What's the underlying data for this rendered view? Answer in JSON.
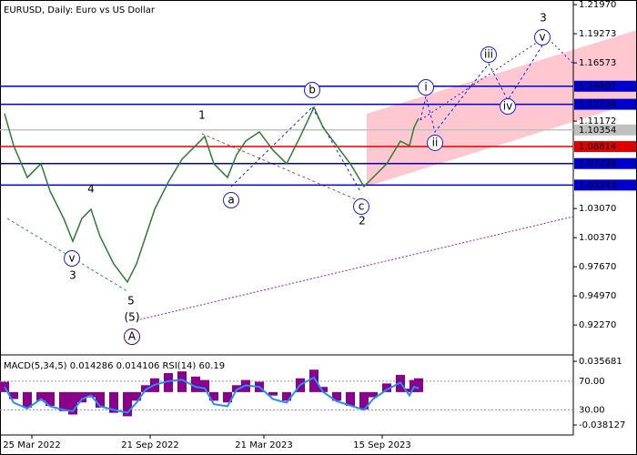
{
  "chart_data": {
    "type": "line",
    "title": "EURUSD, Daily:  Euro vs US Dollar",
    "xlim": [
      0,
      126
    ],
    "xticks": [
      {
        "value": 7,
        "label": "25 Mar 2022"
      },
      {
        "value": 33,
        "label": "21 Sep 2022"
      },
      {
        "value": 58,
        "label": "21 Mar 2023"
      },
      {
        "value": 84,
        "label": "15 Sep 2023"
      }
    ],
    "ylim": [
      0.895,
      1.224
    ],
    "yticks": [
      {
        "value": 1.2197,
        "label": "1.21970"
      },
      {
        "value": 1.19273,
        "label": "1.19273"
      },
      {
        "value": 1.16573,
        "label": "1.16573"
      },
      {
        "value": 1.11172,
        "label": "1.11172"
      },
      {
        "value": 1.0307,
        "label": "1.03070"
      },
      {
        "value": 1.0037,
        "label": "1.00370"
      },
      {
        "value": 0.9767,
        "label": "0.97670"
      },
      {
        "value": 0.9497,
        "label": "0.94970"
      },
      {
        "value": 0.9227,
        "label": "0.92270"
      }
    ],
    "series": [
      {
        "color": "#2e7d32",
        "x": [
          1,
          3,
          6,
          9,
          11,
          14,
          16,
          18,
          20,
          22,
          25,
          28,
          30,
          32,
          34,
          37,
          40,
          43,
          45,
          47,
          50,
          52,
          54,
          57,
          60,
          63,
          66,
          69,
          71,
          74,
          77,
          80,
          82,
          85,
          88,
          90,
          91,
          92
        ],
        "values": [
          1.1186,
          1.089,
          1.0595,
          1.0722,
          1.0468,
          1.0215,
          1.0004,
          1.0215,
          1.03,
          1.0047,
          0.9794,
          0.9625,
          0.9794,
          1.0047,
          1.03,
          1.0553,
          1.0764,
          1.089,
          1.0975,
          1.0722,
          1.0595,
          1.0806,
          1.0932,
          1.1017,
          1.0848,
          1.0722,
          1.0975,
          1.1245,
          1.1059,
          1.089,
          1.0722,
          1.0511,
          1.0595,
          1.0722,
          1.0932,
          1.089,
          1.1059,
          1.1143
        ]
      }
    ],
    "levels": [
      {
        "value": 1.14407,
        "color": "#0000cd"
      },
      {
        "value": 1.12734,
        "color": "#0000cd"
      },
      {
        "value": 1.10354,
        "color": "#c0c0c0"
      },
      {
        "value": 1.08814,
        "color": "#e00000"
      },
      {
        "value": 1.07238,
        "color": "#0000cd"
      },
      {
        "value": 1.05243,
        "color": "#0000cd"
      }
    ],
    "annotations": [
      {
        "text": "1",
        "x": 44.4,
        "y": 1.1169,
        "color": "#a0522d",
        "circled": false
      },
      {
        "text": "2",
        "x": 79.6,
        "y": 1.019,
        "color": "#a0522d",
        "circled": false
      },
      {
        "text": "3",
        "x": 119.4,
        "y": 1.2071,
        "color": "#a0522d",
        "circled": false
      },
      {
        "text": "4",
        "x": 20,
        "y": 1.0485,
        "color": "#a0522d",
        "circled": false
      },
      {
        "text": "5",
        "x": 28.8,
        "y": 0.9448,
        "color": "#a0522d",
        "circled": false
      },
      {
        "text": "3",
        "x": 16,
        "y": 0.9684,
        "color": "#a0522d",
        "circled": false
      },
      {
        "text": "(5)",
        "x": 29,
        "y": 0.9296,
        "color": "#2e8b57",
        "circled": false
      },
      {
        "text": "A",
        "x": 29,
        "y": 0.9119,
        "color": "#4b0082",
        "circled": true
      },
      {
        "text": "a",
        "x": 50.8,
        "y": 1.0384,
        "color": "#1a1aff",
        "circled": true
      },
      {
        "text": "b",
        "x": 68.6,
        "y": 1.1405,
        "color": "#1a1aff",
        "circled": true
      },
      {
        "text": "c",
        "x": 79.4,
        "y": 1.0325,
        "color": "#1a1aff",
        "circled": true
      },
      {
        "text": "v",
        "x": 15.8,
        "y": 0.9844,
        "color": "#1a1aff",
        "circled": true
      },
      {
        "text": "i",
        "x": 93.6,
        "y": 1.143,
        "color": "#1a1aff",
        "circled": true
      },
      {
        "text": "ii",
        "x": 95.6,
        "y": 1.0916,
        "color": "#1a1aff",
        "circled": true
      },
      {
        "text": "iii",
        "x": 107.4,
        "y": 1.1734,
        "color": "#1a1aff",
        "circled": true
      },
      {
        "text": "iv",
        "x": 111.6,
        "y": 1.1253,
        "color": "#1a1aff",
        "circled": true
      },
      {
        "text": "v",
        "x": 119.2,
        "y": 1.1894,
        "color": "#1a1aff",
        "circled": true
      }
    ],
    "indicator": {
      "type": "bar",
      "title": "MACD(5,34,5) 0.014286 0.014106 RSI(14) 60.19",
      "ylim": [
        -0.0497,
        0.041
      ],
      "yticks": [
        0.035681,
        -0.038127
      ],
      "y2lim": [
        -5,
        104
      ],
      "y2ticks": [
        {
          "value": 70,
          "label": "70.00"
        },
        {
          "value": 30,
          "label": "30.00"
        }
      ],
      "series": [
        {
          "color": "#8b008b",
          "values": [
            0.012,
            -0.008,
            -0.018,
            -0.01,
            -0.016,
            -0.022,
            -0.026,
            -0.012,
            -0.006,
            -0.018,
            -0.024,
            -0.028,
            -0.01,
            0.008,
            0.016,
            0.022,
            0.024,
            0.018,
            0.014,
            -0.01,
            -0.012,
            0.008,
            0.014,
            0.012,
            -0.004,
            -0.01,
            0.016,
            0.026,
            0.006,
            -0.01,
            -0.016,
            -0.02,
            -0.006,
            0.01,
            0.02,
            0.004,
            0.014,
            0.016
          ]
        },
        {
          "color": "#1e90ff",
          "axis": "y2",
          "values": [
            62,
            40,
            32,
            45,
            35,
            30,
            28,
            45,
            50,
            35,
            30,
            26,
            40,
            58,
            65,
            70,
            72,
            62,
            60,
            38,
            35,
            58,
            64,
            62,
            45,
            40,
            65,
            75,
            55,
            42,
            36,
            30,
            45,
            58,
            68,
            50,
            62,
            60
          ]
        }
      ]
    }
  }
}
